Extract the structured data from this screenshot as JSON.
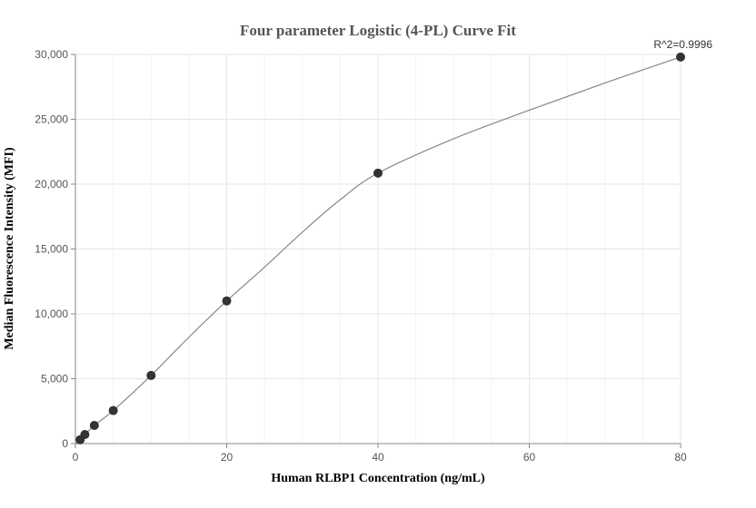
{
  "chart_data": {
    "type": "scatter",
    "title": "Four parameter Logistic (4-PL) Curve Fit",
    "xlabel": "Human RLBP1 Concentration (ng/mL)",
    "ylabel": "Median Fluorescence Intensity (MFI)",
    "annotation": "R^2=0.9996",
    "xlim": [
      0,
      80
    ],
    "ylim": [
      0,
      30000
    ],
    "xticks": [
      0,
      20,
      40,
      60,
      80
    ],
    "xtick_labels": [
      "0",
      "20",
      "40",
      "60",
      "80"
    ],
    "yticks": [
      0,
      5000,
      10000,
      15000,
      20000,
      25000,
      30000
    ],
    "ytick_labels": [
      "0",
      "5,000",
      "10,000",
      "15,000",
      "20,000",
      "25,000",
      "30,000"
    ],
    "grid": true,
    "points": [
      {
        "x": 0.625,
        "y": 300
      },
      {
        "x": 1.25,
        "y": 700
      },
      {
        "x": 2.5,
        "y": 1400
      },
      {
        "x": 5,
        "y": 2550
      },
      {
        "x": 10,
        "y": 5250
      },
      {
        "x": 20,
        "y": 11000
      },
      {
        "x": 40,
        "y": 20850
      },
      {
        "x": 80,
        "y": 29800
      }
    ],
    "fit_curve": [
      {
        "x": 0,
        "y": 0
      },
      {
        "x": 0.625,
        "y": 300
      },
      {
        "x": 1.25,
        "y": 700
      },
      {
        "x": 2.5,
        "y": 1400
      },
      {
        "x": 5,
        "y": 2550
      },
      {
        "x": 10,
        "y": 5250
      },
      {
        "x": 15,
        "y": 8200
      },
      {
        "x": 20,
        "y": 11000
      },
      {
        "x": 25,
        "y": 13600
      },
      {
        "x": 30,
        "y": 16300
      },
      {
        "x": 35,
        "y": 18800
      },
      {
        "x": 40,
        "y": 20850
      },
      {
        "x": 50,
        "y": 23500
      },
      {
        "x": 60,
        "y": 25700
      },
      {
        "x": 70,
        "y": 27800
      },
      {
        "x": 80,
        "y": 29800
      }
    ],
    "colors": {
      "points": "#333333",
      "curve": "#888888",
      "grid": "#e6e6e6"
    }
  }
}
